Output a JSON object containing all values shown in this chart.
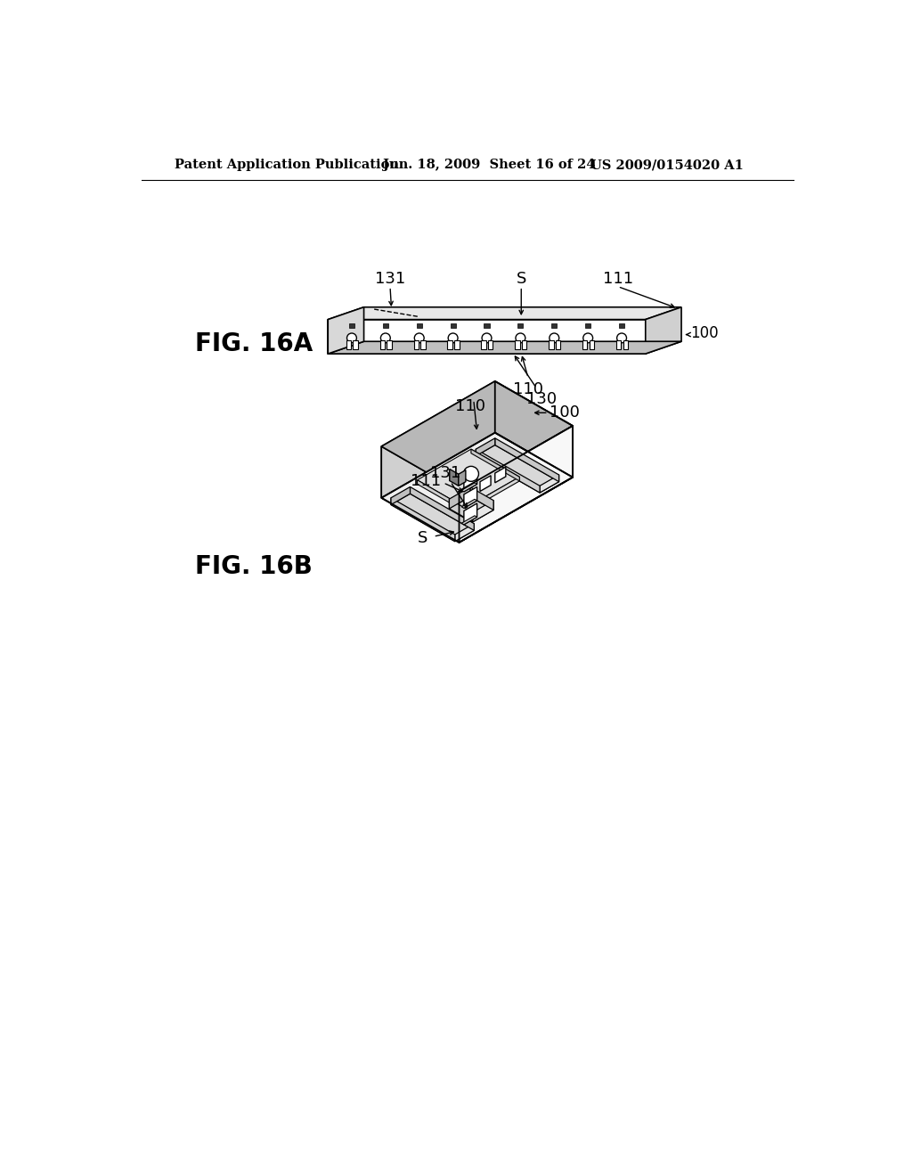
{
  "bg_color": "#ffffff",
  "header_left": "Patent Application Publication",
  "header_mid": "Jun. 18, 2009  Sheet 16 of 24",
  "header_right": "US 2009/0154020 A1",
  "fig16a_label": "FIG. 16A",
  "fig16b_label": "FIG. 16B",
  "label_131a": "131",
  "label_S_a": "S",
  "label_111a": "111",
  "label_100a": "100",
  "label_110a": "110",
  "label_130": "130",
  "label_131b": "131",
  "label_S_b": "S",
  "label_111b": "111",
  "label_100b": "100",
  "label_110b": "110",
  "line_color": "#000000",
  "text_color": "#000000"
}
